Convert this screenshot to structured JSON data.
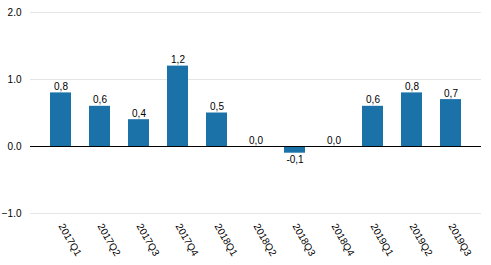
{
  "chart_data": {
    "type": "bar",
    "categories": [
      "2017Q1",
      "2017Q2",
      "2017Q3",
      "2017Q4",
      "2018Q1",
      "2018Q2",
      "2018Q3",
      "2018Q4",
      "2019Q1",
      "2019Q2",
      "2019Q3"
    ],
    "values": [
      0.8,
      0.6,
      0.4,
      1.2,
      0.5,
      0.0,
      -0.1,
      0.0,
      0.6,
      0.8,
      0.7
    ],
    "value_labels": [
      "0,8",
      "0,6",
      "0,4",
      "1,2",
      "0,5",
      "0,0",
      "-0,1",
      "0,0",
      "0,6",
      "0,8",
      "0,7"
    ],
    "color": "#1a72a8",
    "ylim": [
      -1,
      2
    ],
    "yticks": [
      -1,
      0,
      1,
      2
    ],
    "grid": true,
    "data_labels": true
  }
}
